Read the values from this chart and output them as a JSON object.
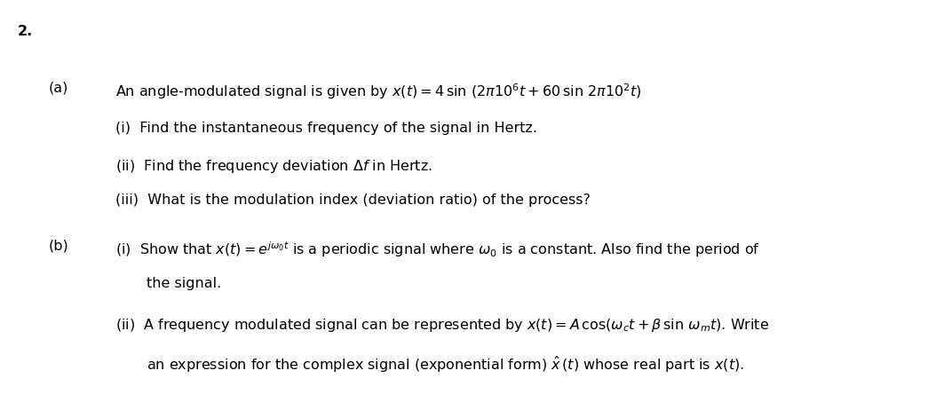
{
  "background_color": "#ffffff",
  "fig_width": 10.45,
  "fig_height": 4.71,
  "dpi": 100,
  "number": "2.",
  "part_a_label": "(a)",
  "part_b_label": "(b)",
  "line_a_intro": "An angle-modulated signal is given by $x(t) = 4\\,\\sin\\,(2\\pi 10^6 t + 60\\,\\sin\\,2\\pi 10^2 t)$",
  "line_a_i": "(i)  Find the instantaneous frequency of the signal in Hertz.",
  "line_a_ii": "(ii)  Find the frequency deviation $\\Delta f$ in Hertz.",
  "line_a_iii": "(iii)  What is the modulation index (deviation ratio) of the process?",
  "line_b_i_1": "(i)  Show that $x(t) = e^{j\\omega_0 t}$ is a periodic signal where $\\omega_0$ is a constant. Also find the period of",
  "line_b_i_2": "the signal.",
  "line_b_ii_1": "(ii)  A frequency modulated signal can be represented by $x(t) = A\\,\\cos(\\omega_c t + \\beta\\,\\sin\\,\\omega_m t)$. Write",
  "line_b_ii_2": "an expression for the complex signal (exponential form) $\\hat{x}\\,(t)$ whose real part is $x(t)$.",
  "font_size": 11.5
}
